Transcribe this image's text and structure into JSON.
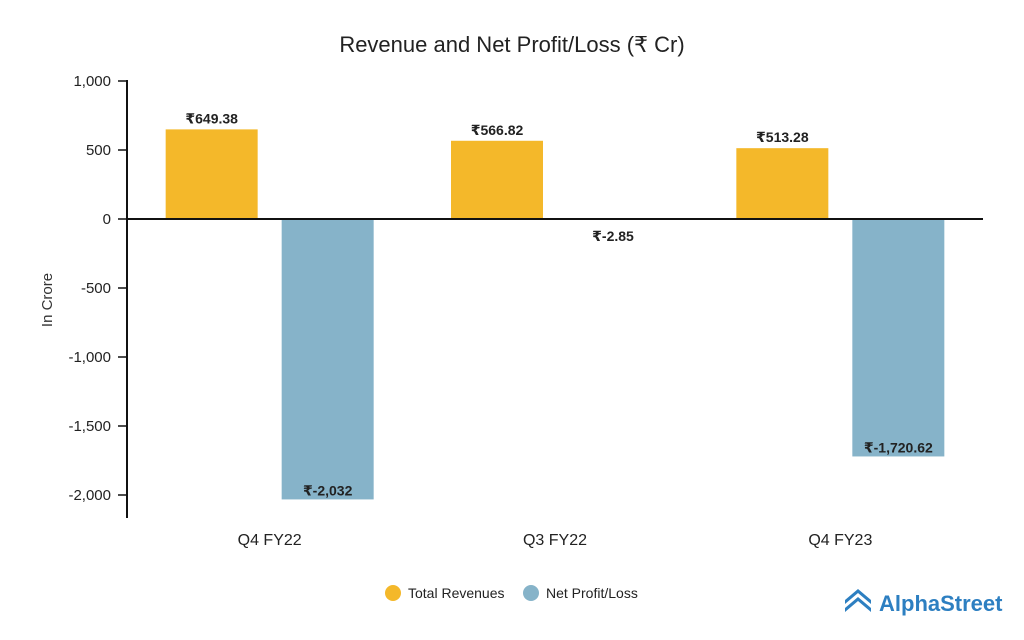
{
  "chart_data": {
    "type": "bar",
    "title": "Revenue and Net Profit/Loss (₹ Cr)",
    "xlabel": "",
    "ylabel": "In Crore",
    "ylim": [
      -2160,
      1000
    ],
    "yticks": [
      1000,
      500,
      0,
      -500,
      -1000,
      -1500,
      -2000
    ],
    "ytick_labels": [
      "1,000",
      "500",
      "0",
      "-500",
      "-1,000",
      "-1,500",
      "-2,000"
    ],
    "categories": [
      "Q4 FY22",
      "Q3 FY22",
      "Q4 FY23"
    ],
    "series": [
      {
        "name": "Total Revenues",
        "color": "#f4b82a",
        "values": [
          649.38,
          566.82,
          513.28
        ],
        "labels": [
          "₹649.38",
          "₹566.82",
          "₹513.28"
        ]
      },
      {
        "name": "Net Profit/Loss",
        "color": "#86b3c9",
        "values": [
          -2032,
          -2.85,
          -1720.62
        ],
        "labels": [
          "₹-2,032",
          "₹-2.85",
          "₹-1,720.62"
        ]
      }
    ],
    "legend_position": "bottom-center"
  },
  "brand": {
    "name": "AlphaStreet",
    "color": "#2d7fc1"
  }
}
